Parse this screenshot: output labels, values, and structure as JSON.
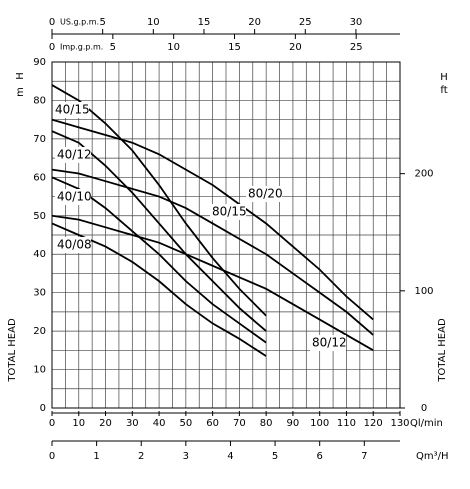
{
  "chart_data": {
    "type": "line",
    "color": "#000000",
    "grid": true,
    "x_label": "Ql/min",
    "y_label": "TOTAL HEAD",
    "y_symbol": "H",
    "y_unit": "m",
    "x": [
      0,
      10,
      20,
      30,
      40,
      50,
      60,
      70,
      80,
      90,
      100,
      110,
      120
    ],
    "xlim": [
      0,
      130
    ],
    "xticks": [
      0,
      10,
      20,
      30,
      40,
      50,
      60,
      70,
      80,
      90,
      100,
      110,
      120,
      130
    ],
    "x_minor_ticks": [
      5,
      15,
      25,
      35,
      45,
      55,
      65,
      75,
      85,
      95,
      105,
      115,
      125
    ],
    "ylim": [
      0,
      90
    ],
    "yticks": [
      0,
      10,
      20,
      30,
      40,
      50,
      60,
      70,
      80,
      90
    ],
    "y_minor_ticks": [
      5,
      15,
      25,
      35,
      45,
      55,
      65,
      75,
      85
    ],
    "series": [
      {
        "name": "40/15",
        "values": [
          84,
          80,
          74,
          67,
          58,
          48,
          39,
          31,
          24,
          null,
          null,
          null,
          null
        ]
      },
      {
        "name": "40/12",
        "values": [
          72,
          69,
          63,
          56,
          48,
          40,
          33,
          26,
          20,
          null,
          null,
          null,
          null
        ]
      },
      {
        "name": "40/10",
        "values": [
          60,
          57,
          52,
          46,
          40,
          33,
          27,
          22,
          17,
          null,
          null,
          null,
          null
        ]
      },
      {
        "name": "40/08",
        "values": [
          48,
          45,
          42,
          38,
          33,
          27,
          22,
          18,
          13.5,
          null,
          null,
          null,
          null
        ]
      },
      {
        "name": "80/20",
        "values": [
          75,
          73,
          71,
          69,
          66,
          62,
          58,
          53,
          48,
          42,
          36,
          29,
          23
        ]
      },
      {
        "name": "80/15",
        "values": [
          62,
          61,
          59,
          57,
          55,
          52,
          48,
          44,
          40,
          35,
          30,
          25,
          19
        ]
      },
      {
        "name": "80/12",
        "values": [
          50,
          49,
          47,
          45,
          43,
          40,
          37,
          34,
          31,
          27,
          23,
          19,
          15
        ]
      }
    ],
    "y2": {
      "symbol": "H",
      "unit": "ft",
      "label": "TOTAL HEAD",
      "lim": [
        0,
        295.3
      ],
      "ticks": [
        0,
        100,
        200
      ]
    },
    "top_axes": [
      {
        "label": "US.g.p.m.",
        "lim": [
          0,
          34.35
        ],
        "ticks": [
          0,
          5,
          10,
          15,
          20,
          25,
          30
        ]
      },
      {
        "label": "Imp.g.p.m.",
        "lim": [
          0,
          28.6
        ],
        "ticks": [
          0,
          5,
          10,
          15,
          20,
          25
        ]
      }
    ],
    "bottom_axis2": {
      "label": "Qm³/H",
      "lim": [
        0,
        7.8
      ],
      "ticks": [
        0,
        1,
        2,
        3,
        4,
        5,
        6,
        7
      ]
    }
  }
}
